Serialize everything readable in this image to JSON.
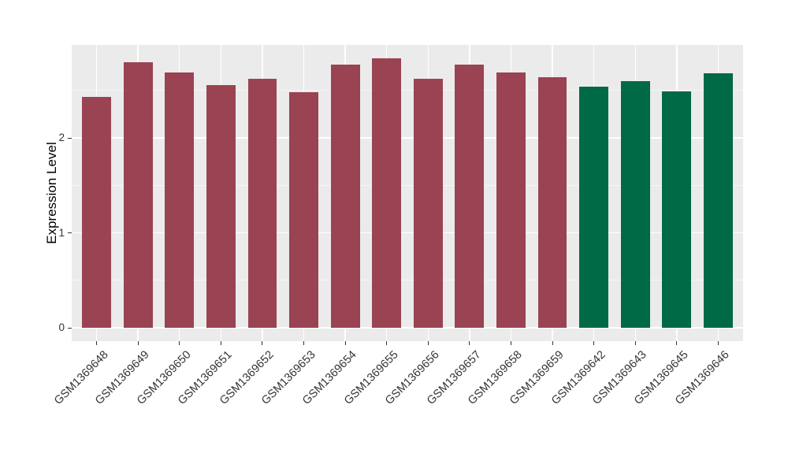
{
  "chart_data": {
    "type": "bar",
    "title": "",
    "xlabel": "",
    "ylabel": "Expression Level",
    "categories": [
      "GSM1369648",
      "GSM1369649",
      "GSM1369650",
      "GSM1369651",
      "GSM1369652",
      "GSM1369653",
      "GSM1369654",
      "GSM1369655",
      "GSM1369656",
      "GSM1369657",
      "GSM1369658",
      "GSM1369659",
      "GSM1369642",
      "GSM1369643",
      "GSM1369645",
      "GSM1369646"
    ],
    "values": [
      2.43,
      2.8,
      2.69,
      2.56,
      2.62,
      2.48,
      2.77,
      2.84,
      2.62,
      2.77,
      2.69,
      2.64,
      2.54,
      2.6,
      2.49,
      2.68
    ],
    "bar_colors": [
      "#9A4353",
      "#9A4353",
      "#9A4353",
      "#9A4353",
      "#9A4353",
      "#9A4353",
      "#9A4353",
      "#9A4353",
      "#9A4353",
      "#9A4353",
      "#9A4353",
      "#9A4353",
      "#006946",
      "#006946",
      "#006946",
      "#006946"
    ],
    "group_colors": {
      "group_1": "#9A4353",
      "group_2": "#006946"
    },
    "yticks": [
      0,
      1,
      2
    ],
    "yticks_minor": [
      0.5,
      1.5,
      2.5
    ],
    "ylim": [
      -0.14,
      2.98
    ],
    "bar_width_fraction": 0.7,
    "grid": true,
    "legend_position": "none",
    "panel_background": "#EBEBEB",
    "grid_major_color": "#FFFFFF",
    "grid_minor_color": "rgba(255,255,255,0.55)",
    "axis_text_color": "#333333",
    "axis_title_color": "#000000",
    "tick_color": "#333333"
  }
}
